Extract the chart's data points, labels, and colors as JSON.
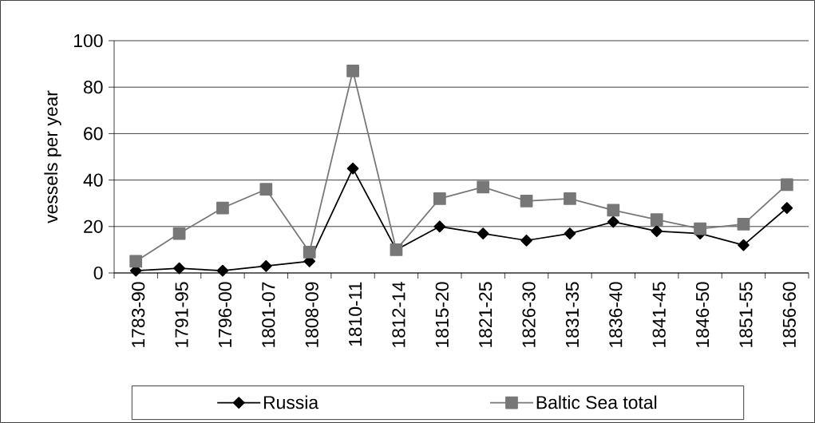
{
  "chart_data": {
    "type": "line",
    "ylabel": "vessels per year",
    "categories": [
      "1783-90",
      "1791-95",
      "1796-00",
      "1801-07",
      "1808-09",
      "1810-11",
      "1812-14",
      "1815-20",
      "1821-25",
      "1826-30",
      "1831-35",
      "1836-40",
      "1841-45",
      "1846-50",
      "1851-55",
      "1856-60"
    ],
    "series": [
      {
        "name": "Russia",
        "color": "#000000",
        "marker": "diamond",
        "values": [
          1,
          2,
          1,
          3,
          5,
          45,
          10,
          20,
          17,
          14,
          17,
          22,
          18,
          17,
          12,
          28
        ]
      },
      {
        "name": "Baltic Sea total",
        "color": "#777777",
        "marker": "square",
        "values": [
          5,
          17,
          28,
          36,
          9,
          87,
          10,
          32,
          37,
          31,
          32,
          27,
          23,
          19,
          21,
          38
        ]
      }
    ],
    "ylim": [
      0,
      100
    ],
    "yticks": [
      0,
      20,
      40,
      60,
      80,
      100
    ],
    "grid": "y",
    "legend": "bottom"
  }
}
